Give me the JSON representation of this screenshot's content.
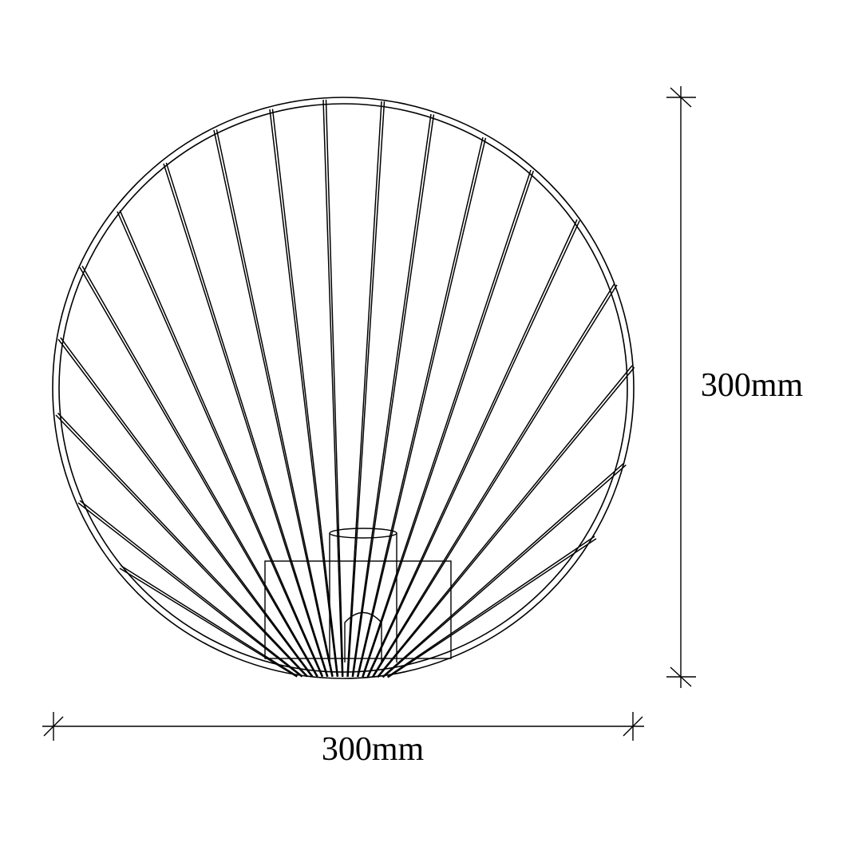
{
  "dimensions": {
    "height_label": "300mm",
    "width_label": "300mm"
  },
  "colors": {
    "line": "#000000",
    "background": "#ffffff"
  }
}
